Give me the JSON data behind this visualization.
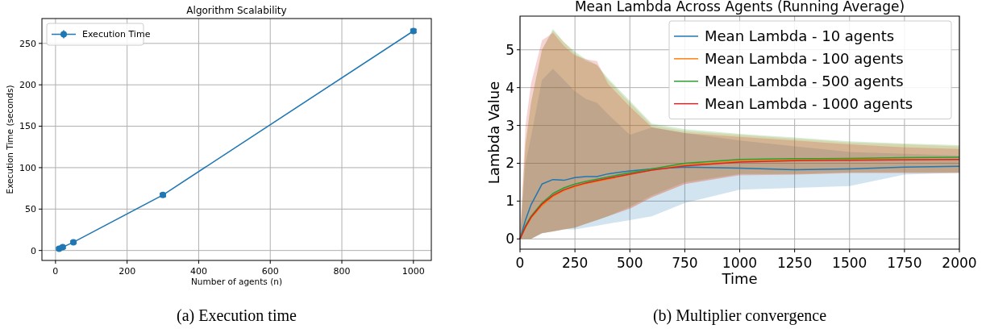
{
  "chart_data": [
    {
      "type": "line",
      "title": "Algorithm Scalability",
      "xlabel": "Number of agents (n)",
      "ylabel": "Execution Time (seconds)",
      "annotations": [
        "(a) Execution time"
      ],
      "x": [
        10,
        20,
        50,
        300,
        1000
      ],
      "xlim": [
        -38,
        1050
      ],
      "xticks": [
        0,
        200,
        400,
        600,
        800,
        1000
      ],
      "ylim": [
        -12,
        280
      ],
      "yticks": [
        0,
        50,
        100,
        150,
        200,
        250
      ],
      "grid": true,
      "legend": "top left",
      "marker": "circle",
      "series": [
        {
          "name": "Execution Time",
          "color": "#1f77b4",
          "values": [
            2,
            4,
            10,
            67,
            265
          ],
          "errors": [
            1.5,
            1.5,
            1.5,
            2,
            2
          ]
        }
      ]
    },
    {
      "type": "line",
      "title": "Mean Lambda Across Agents (Running Average)",
      "xlabel": "Time",
      "ylabel": "Lambda Value",
      "annotations": [
        "(b) Multiplier convergence"
      ],
      "x": [
        0,
        25,
        50,
        100,
        150,
        200,
        250,
        300,
        350,
        400,
        500,
        600,
        750,
        1000,
        1250,
        1500,
        1750,
        2000
      ],
      "xlim": [
        0,
        2000
      ],
      "xticks": [
        0,
        250,
        500,
        750,
        1000,
        1250,
        1500,
        1750,
        2000
      ],
      "ylim": [
        -0.27,
        5.89
      ],
      "yticks": [
        0,
        1,
        2,
        3,
        4,
        5
      ],
      "grid": true,
      "legend": "top right",
      "marker": "none",
      "series": [
        {
          "name": "Mean Lambda - 10 agents",
          "color": "#1f77b4",
          "values": [
            0,
            0.5,
            0.9,
            1.45,
            1.57,
            1.55,
            1.62,
            1.65,
            1.65,
            1.72,
            1.8,
            1.85,
            1.9,
            1.87,
            1.83,
            1.85,
            1.9,
            1.92
          ],
          "lower": [
            0,
            0,
            0,
            0.15,
            0.2,
            0.25,
            0.25,
            0.3,
            0.35,
            0.4,
            0.5,
            0.6,
            0.95,
            1.3,
            1.35,
            1.4,
            1.7,
            1.75
          ],
          "upper": [
            0,
            2,
            2.7,
            4.2,
            4.5,
            4.2,
            3.9,
            3.7,
            3.6,
            3.3,
            2.75,
            2.95,
            2.8,
            2.6,
            2.45,
            2.3,
            2.25,
            2.2
          ]
        },
        {
          "name": "Mean Lambda - 100 agents",
          "color": "#ff7f0e",
          "values": [
            0,
            0.3,
            0.55,
            0.88,
            1.12,
            1.28,
            1.38,
            1.46,
            1.52,
            1.58,
            1.7,
            1.82,
            1.95,
            2.06,
            2.09,
            2.1,
            2.1,
            2.1
          ],
          "lower": [
            0,
            0,
            0,
            0.15,
            0.2,
            0.25,
            0.3,
            0.4,
            0.5,
            0.6,
            0.8,
            1.1,
            1.45,
            1.7,
            1.7,
            1.75,
            1.75,
            1.75
          ],
          "upper": [
            0,
            2.5,
            3.6,
            5,
            5.5,
            5.2,
            4.9,
            4.7,
            4.6,
            4.2,
            3.6,
            3,
            2.85,
            2.75,
            2.65,
            2.55,
            2.5,
            2.45
          ]
        },
        {
          "name": "Mean Lambda - 500 agents",
          "color": "#2ca02c",
          "values": [
            0,
            0.35,
            0.6,
            0.95,
            1.2,
            1.35,
            1.45,
            1.52,
            1.58,
            1.64,
            1.75,
            1.85,
            2,
            2.1,
            2.12,
            2.13,
            2.15,
            2.16
          ],
          "lower": [
            0,
            0,
            0,
            0.15,
            0.2,
            0.25,
            0.3,
            0.4,
            0.5,
            0.6,
            0.85,
            1.15,
            1.5,
            1.72,
            1.72,
            1.76,
            1.76,
            1.76
          ],
          "upper": [
            0,
            2.5,
            3.6,
            5,
            5.55,
            5.2,
            4.95,
            4.75,
            4.6,
            4.25,
            3.65,
            3.05,
            2.9,
            2.78,
            2.68,
            2.58,
            2.52,
            2.48
          ]
        },
        {
          "name": "Mean Lambda - 1000 agents",
          "color": "#d62728",
          "values": [
            0,
            0.32,
            0.57,
            0.92,
            1.15,
            1.3,
            1.4,
            1.48,
            1.54,
            1.6,
            1.71,
            1.82,
            1.93,
            2.03,
            2.07,
            2.08,
            2.09,
            2.1
          ],
          "lower": [
            0,
            0,
            0,
            0.15,
            0.2,
            0.25,
            0.3,
            0.4,
            0.5,
            0.6,
            0.8,
            1.1,
            1.45,
            1.68,
            1.7,
            1.74,
            1.74,
            1.74
          ],
          "upper": [
            0,
            3,
            4.1,
            5.25,
            5.45,
            5.1,
            4.85,
            4.75,
            4.7,
            4.1,
            3.5,
            2.95,
            2.8,
            2.7,
            2.6,
            2.5,
            2.42,
            2.38
          ]
        }
      ]
    }
  ]
}
